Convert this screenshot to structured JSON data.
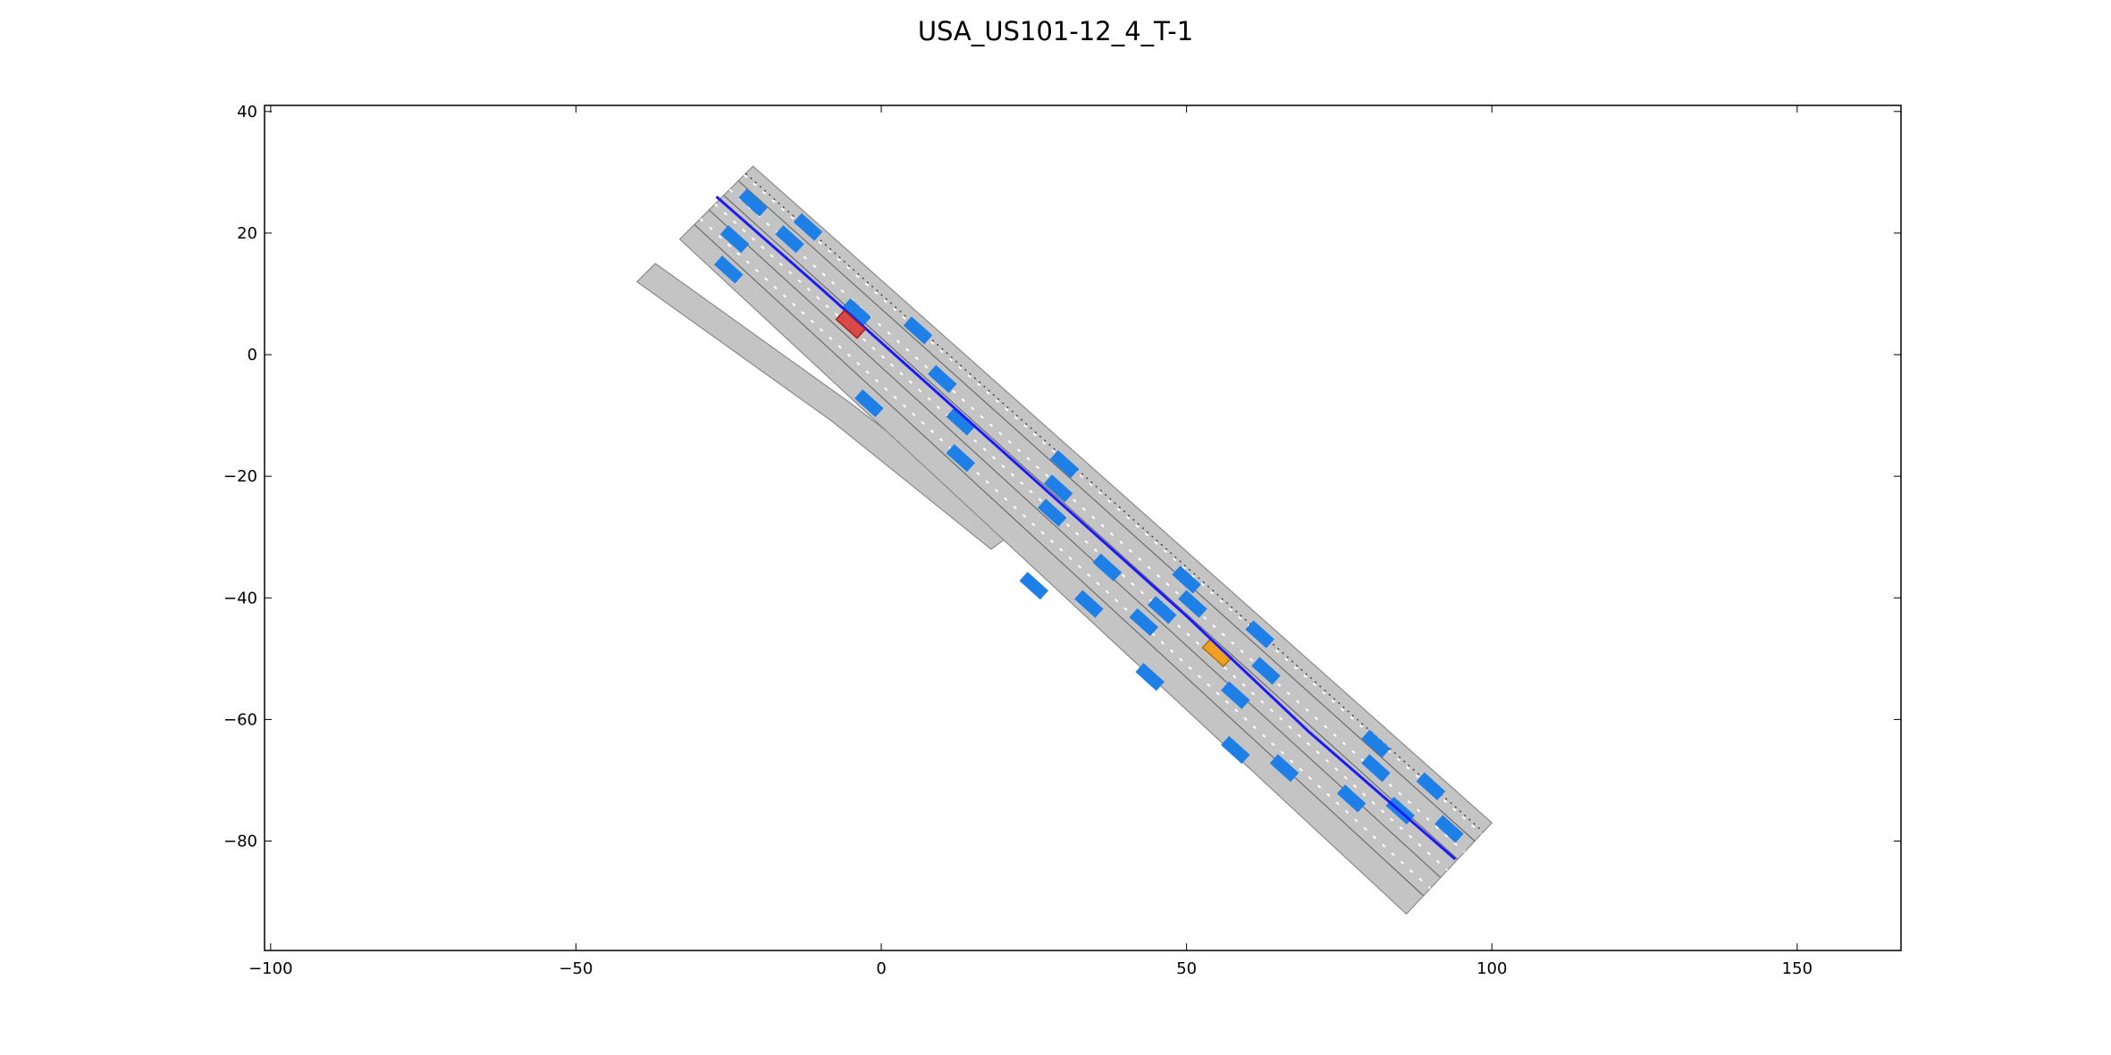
{
  "chart_data": {
    "type": "scatter",
    "title": "USA_US101-12_4_T-1",
    "xlabel": "",
    "ylabel": "",
    "xlim": [
      -101,
      167
    ],
    "ylim": [
      -98,
      41
    ],
    "xticks": [
      -100,
      -50,
      0,
      50,
      100,
      150
    ],
    "yticks": [
      40,
      20,
      0,
      -20,
      -40,
      -60,
      -80
    ],
    "xtick_labels": [
      "−100",
      "−50",
      "0",
      "50",
      "100",
      "150"
    ],
    "ytick_labels": [
      "40",
      "20",
      "0",
      "−20",
      "−40",
      "−60",
      "−80"
    ],
    "grid": false,
    "colors": {
      "road": "#c4c4c4",
      "road_edge": "#8a8a8a",
      "lane_marking": "#ffffff",
      "vehicle": "#1e7fe6",
      "ego_vehicle": "#d84a4a",
      "goal_vehicle": "#f0a020",
      "planned_path": "#1a1aff"
    },
    "road": {
      "main_left_edge": [
        [
          -21,
          31
        ],
        [
          100,
          -77
        ]
      ],
      "main_right_edge": [
        [
          -33,
          19
        ],
        [
          86,
          -92
        ]
      ],
      "lane_count": 5,
      "ramp_left_edge": [
        [
          -37,
          15
        ],
        [
          -5,
          -8
        ],
        [
          22,
          -29
        ]
      ],
      "ramp_right_edge": [
        [
          -40,
          12
        ],
        [
          -8,
          -11
        ],
        [
          18,
          -32
        ]
      ]
    },
    "planned_path": [
      [
        -27,
        26
      ],
      [
        -10,
        11
      ],
      [
        10,
        -7
      ],
      [
        30,
        -25
      ],
      [
        50,
        -43
      ],
      [
        70,
        -62
      ],
      [
        94,
        -83
      ]
    ],
    "ego_vehicle": {
      "x": -5,
      "y": 5,
      "heading_deg": -42
    },
    "goal_vehicle": {
      "x": 55,
      "y": -49,
      "heading_deg": -42
    },
    "vehicles": [
      {
        "x": -21,
        "y": 25,
        "heading_deg": -42
      },
      {
        "x": -12,
        "y": 21,
        "heading_deg": -42
      },
      {
        "x": -24,
        "y": 19,
        "heading_deg": -42
      },
      {
        "x": -15,
        "y": 19,
        "heading_deg": -42
      },
      {
        "x": -25,
        "y": 14,
        "heading_deg": -42
      },
      {
        "x": -4,
        "y": 7,
        "heading_deg": -42
      },
      {
        "x": 6,
        "y": 4,
        "heading_deg": -42
      },
      {
        "x": 10,
        "y": -4,
        "heading_deg": -42
      },
      {
        "x": -2,
        "y": -8,
        "heading_deg": -42
      },
      {
        "x": 13,
        "y": -11,
        "heading_deg": -42
      },
      {
        "x": 13,
        "y": -17,
        "heading_deg": -42
      },
      {
        "x": 30,
        "y": -18,
        "heading_deg": -42
      },
      {
        "x": 29,
        "y": -22,
        "heading_deg": -42
      },
      {
        "x": 28,
        "y": -26,
        "heading_deg": -42
      },
      {
        "x": 37,
        "y": -35,
        "heading_deg": -42
      },
      {
        "x": 50,
        "y": -37,
        "heading_deg": -42
      },
      {
        "x": 25,
        "y": -38,
        "heading_deg": -42
      },
      {
        "x": 34,
        "y": -41,
        "heading_deg": -42
      },
      {
        "x": 46,
        "y": -42,
        "heading_deg": -42
      },
      {
        "x": 51,
        "y": -41,
        "heading_deg": -42
      },
      {
        "x": 43,
        "y": -44,
        "heading_deg": -42
      },
      {
        "x": 62,
        "y": -46,
        "heading_deg": -42
      },
      {
        "x": 63,
        "y": -52,
        "heading_deg": -42
      },
      {
        "x": 44,
        "y": -53,
        "heading_deg": -42
      },
      {
        "x": 58,
        "y": -56,
        "heading_deg": -42
      },
      {
        "x": 58,
        "y": -65,
        "heading_deg": -42
      },
      {
        "x": 66,
        "y": -68,
        "heading_deg": -42
      },
      {
        "x": 81,
        "y": -64,
        "heading_deg": -42
      },
      {
        "x": 81,
        "y": -68,
        "heading_deg": -42
      },
      {
        "x": 90,
        "y": -71,
        "heading_deg": -42
      },
      {
        "x": 77,
        "y": -73,
        "heading_deg": -42
      },
      {
        "x": 85,
        "y": -75,
        "heading_deg": -42
      },
      {
        "x": 93,
        "y": -78,
        "heading_deg": -42
      }
    ]
  }
}
